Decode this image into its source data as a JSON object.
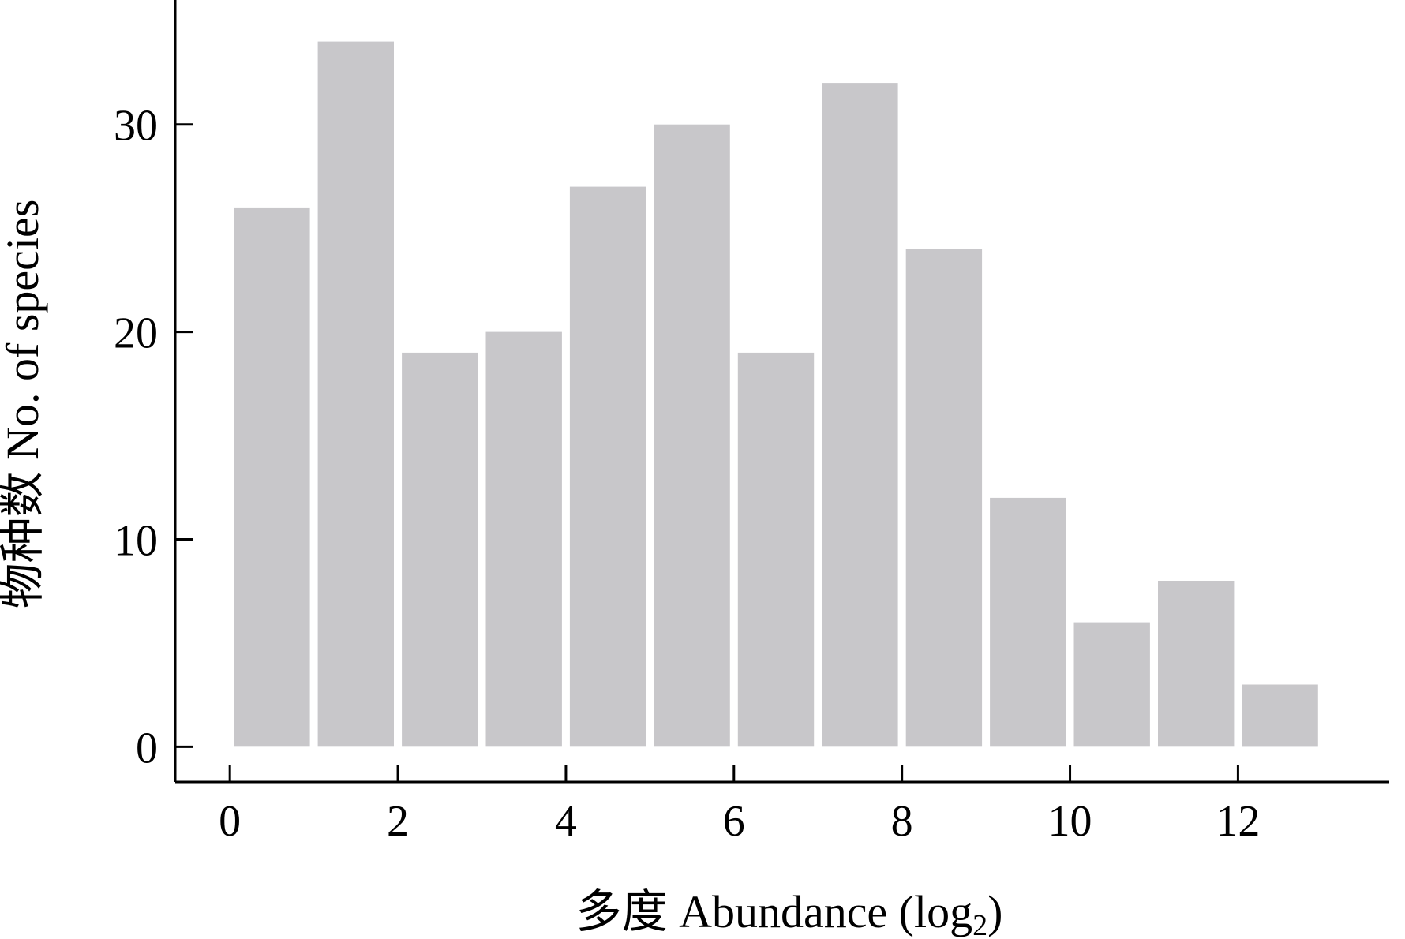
{
  "chart_data": {
    "type": "bar",
    "bin_edges": [
      0,
      1,
      2,
      3,
      4,
      5,
      6,
      7,
      8,
      9,
      10,
      11,
      12,
      13
    ],
    "values": [
      26,
      34,
      19,
      20,
      27,
      30,
      19,
      32,
      24,
      12,
      6,
      8,
      3
    ],
    "bar_color": "#c8c7ca",
    "xlabel_prefix": "多度 Abundance (log",
    "xlabel_sub": "2",
    "xlabel_suffix": ")",
    "ylabel": "物种数 No. of species",
    "xticks": [
      0,
      2,
      4,
      6,
      8,
      10,
      12
    ],
    "yticks": [
      0,
      10,
      20,
      30
    ],
    "xlim": [
      -0.65,
      13.8
    ],
    "ylim": [
      -1.7,
      36
    ],
    "grid": false
  }
}
